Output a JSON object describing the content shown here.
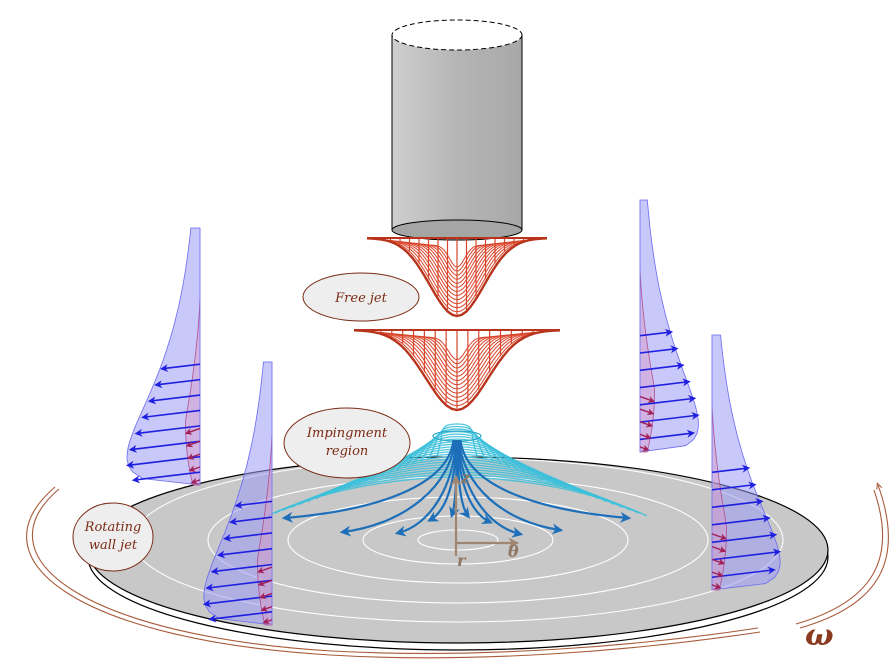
{
  "labels": {
    "free_jet": "Free jet",
    "impingement_line1": "Impingment",
    "impingement_line2": "region",
    "wall_jet_line1": "Rotating",
    "wall_jet_line2": "wall jet"
  },
  "axes": {
    "z": "z",
    "r": "r",
    "theta": "θ"
  },
  "rotation_symbol": "ω",
  "colors": {
    "nozzle": "#bdbdbd",
    "free_jet": "#d9452b",
    "impingement": "#3cc0da",
    "streamlines": "#1c6fb8",
    "velocity_arrows": "#1f1fe0",
    "swirl_arrows": "#a0205a",
    "profile_fill": "#9a9af5",
    "disk": "#c8c8c8",
    "rotation_arrow": "#a85a3a",
    "label_text": "#7a2a14",
    "axis": "#a08670"
  }
}
